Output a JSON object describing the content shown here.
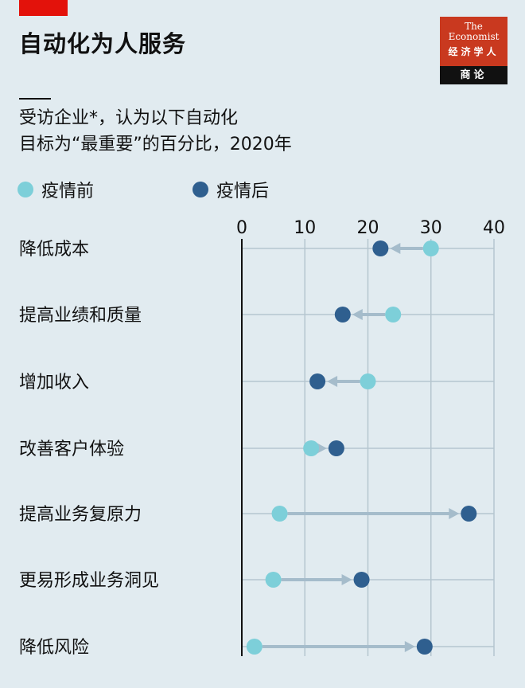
{
  "header": {
    "title": "自动化为人服务"
  },
  "logo": {
    "line1": "The",
    "line2": "Economist",
    "line3": "经济学人",
    "line4": "商论"
  },
  "chart_data": {
    "type": "dot-arrow",
    "title": "受访企业*，认为以下自动化目标为“最重要”的百分比，2020年",
    "title_lines": [
      "受访企业*，认为以下自动化",
      "目标为“最重要”的百分比，2020年"
    ],
    "xlim": [
      0,
      40
    ],
    "xticks": [
      "0",
      "10",
      "20",
      "30",
      "40"
    ],
    "xtick_values": [
      0,
      10,
      20,
      30,
      40
    ],
    "legend": [
      "疫情前",
      "疫情后"
    ],
    "legend_placement": "top",
    "colors": {
      "before": "#7dcfd9",
      "after": "#2f5f8f",
      "arrow": "#a5bccb"
    },
    "categories": [
      "降低成本",
      "提高业绩和质量",
      "增加收入",
      "改善客户体验",
      "提高业务复原力",
      "更易形成业务洞见",
      "降低风险"
    ],
    "series": [
      {
        "name": "疫情前",
        "values": [
          30,
          24,
          20,
          11,
          6,
          5,
          2
        ]
      },
      {
        "name": "疫情后",
        "values": [
          22,
          16,
          12,
          15,
          36,
          19,
          29
        ]
      }
    ]
  }
}
